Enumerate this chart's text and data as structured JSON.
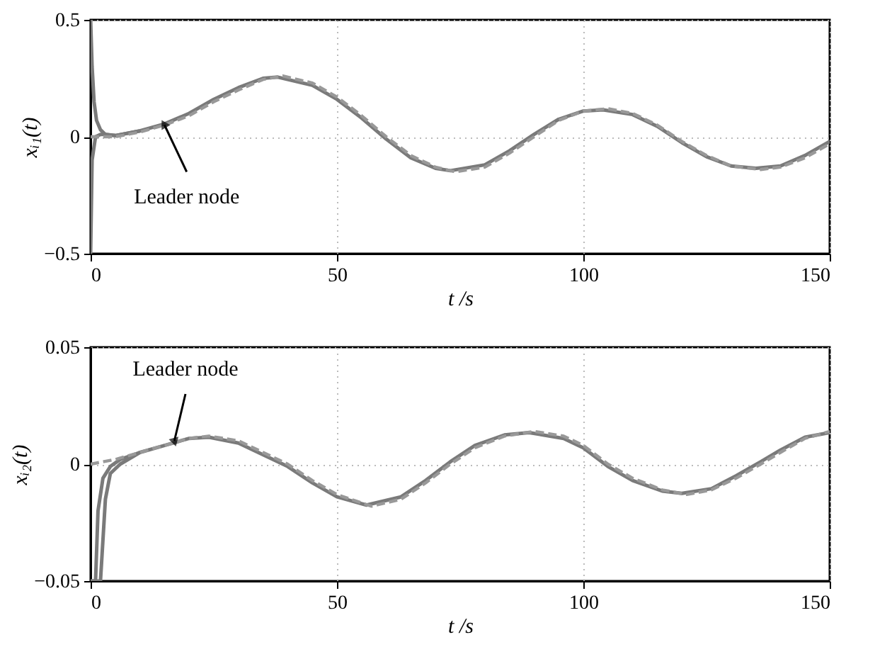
{
  "chart_data": [
    {
      "type": "line",
      "xlabel": "t /s",
      "ylabel": "xᵢ₁(t)",
      "xlim": [
        0,
        150
      ],
      "ylim": [
        -0.5,
        0.5
      ],
      "xticks": [
        0,
        50,
        100,
        150
      ],
      "yticks": [
        -0.5,
        0,
        0.5
      ],
      "grid": true,
      "annotations": [
        {
          "text": "Leader node",
          "x": 15,
          "y": 0.05
        }
      ],
      "series": [
        {
          "color": "#7a7a7a",
          "line_style": "solid",
          "x": [
            0,
            0.3,
            0.7,
            1.2,
            2,
            3,
            5,
            10,
            15,
            20,
            25,
            30,
            35,
            38,
            45,
            50,
            55,
            60,
            65,
            70,
            73,
            80,
            85,
            90,
            95,
            100,
            104,
            110,
            115,
            120,
            125,
            130,
            135,
            140,
            145,
            150
          ],
          "values": [
            0.5,
            0.3,
            0.15,
            0.07,
            0.03,
            0.01,
            0.005,
            0.025,
            0.055,
            0.1,
            0.16,
            0.21,
            0.25,
            0.255,
            0.22,
            0.16,
            0.08,
            -0.01,
            -0.09,
            -0.135,
            -0.145,
            -0.12,
            -0.06,
            0.01,
            0.075,
            0.11,
            0.115,
            0.095,
            0.045,
            -0.025,
            -0.085,
            -0.125,
            -0.135,
            -0.125,
            -0.08,
            -0.02
          ]
        },
        {
          "color": "#7a7a7a",
          "line_style": "solid",
          "x": [
            0,
            0.3,
            1,
            2,
            3,
            5,
            10
          ],
          "values": [
            -0.5,
            -0.1,
            0.0,
            0.01,
            0.01,
            0.005,
            0.025
          ]
        },
        {
          "color": "#999999",
          "line_style": "dashed",
          "x": [
            0,
            2,
            5,
            10,
            15,
            20,
            25,
            30,
            35,
            39,
            45,
            50,
            55,
            60,
            65,
            70,
            74,
            80,
            85,
            90,
            95,
            100,
            105,
            110,
            115,
            120,
            125,
            130,
            136,
            140,
            145,
            150
          ],
          "values": [
            0,
            0.0,
            0.0,
            0.02,
            0.05,
            0.09,
            0.15,
            0.2,
            0.245,
            0.26,
            0.23,
            0.17,
            0.09,
            0.0,
            -0.08,
            -0.13,
            -0.15,
            -0.13,
            -0.07,
            0.0,
            0.07,
            0.11,
            0.12,
            0.1,
            0.05,
            -0.02,
            -0.08,
            -0.125,
            -0.14,
            -0.13,
            -0.09,
            -0.03
          ]
        }
      ]
    },
    {
      "type": "line",
      "xlabel": "t /s",
      "ylabel": "xᵢ₂(t)",
      "xlim": [
        0,
        150
      ],
      "ylim": [
        -0.05,
        0.05
      ],
      "xticks": [
        0,
        50,
        100,
        150
      ],
      "yticks": [
        -0.05,
        0,
        0.05
      ],
      "grid": true,
      "annotations": [
        {
          "text": "Leader node",
          "x": 17,
          "y": 0.01
        }
      ],
      "series": [
        {
          "color": "#7a7a7a",
          "line_style": "solid",
          "x": [
            0,
            1,
            1.5,
            2.5,
            4,
            6,
            10,
            15,
            20,
            24,
            30,
            35,
            40,
            45,
            50,
            56,
            63,
            68,
            73,
            78,
            84,
            89,
            96,
            100,
            105,
            110,
            116,
            120,
            126,
            131,
            136,
            140,
            145,
            150
          ],
          "values": [
            -0.05,
            -0.05,
            -0.02,
            -0.006,
            -0.001,
            0.002,
            0.005,
            0.008,
            0.011,
            0.0115,
            0.009,
            0.004,
            -0.001,
            -0.008,
            -0.014,
            -0.0175,
            -0.014,
            -0.007,
            0.001,
            0.008,
            0.0125,
            0.0135,
            0.011,
            0.007,
            -0.001,
            -0.007,
            -0.0115,
            -0.0125,
            -0.0105,
            -0.005,
            0.001,
            0.006,
            0.0115,
            0.0135
          ]
        },
        {
          "color": "#7a7a7a",
          "line_style": "solid",
          "x": [
            0,
            2,
            3,
            4,
            6,
            10
          ],
          "values": [
            -0.05,
            -0.05,
            -0.015,
            -0.004,
            0.0,
            0.005
          ]
        },
        {
          "color": "#999999",
          "line_style": "dashed",
          "x": [
            0,
            5,
            10,
            15,
            20,
            24,
            30,
            35,
            40,
            45,
            50,
            57,
            63,
            68,
            73,
            78,
            84,
            90,
            96,
            100,
            105,
            110,
            116,
            121,
            126,
            131,
            136,
            140,
            145,
            150
          ],
          "values": [
            0,
            0.002,
            0.005,
            0.008,
            0.011,
            0.012,
            0.01,
            0.005,
            0.0,
            -0.007,
            -0.013,
            -0.018,
            -0.015,
            -0.008,
            0.0,
            0.007,
            0.012,
            0.014,
            0.012,
            0.008,
            0.0,
            -0.006,
            -0.011,
            -0.013,
            -0.011,
            -0.006,
            0.0,
            0.005,
            0.011,
            0.014
          ]
        }
      ]
    }
  ]
}
